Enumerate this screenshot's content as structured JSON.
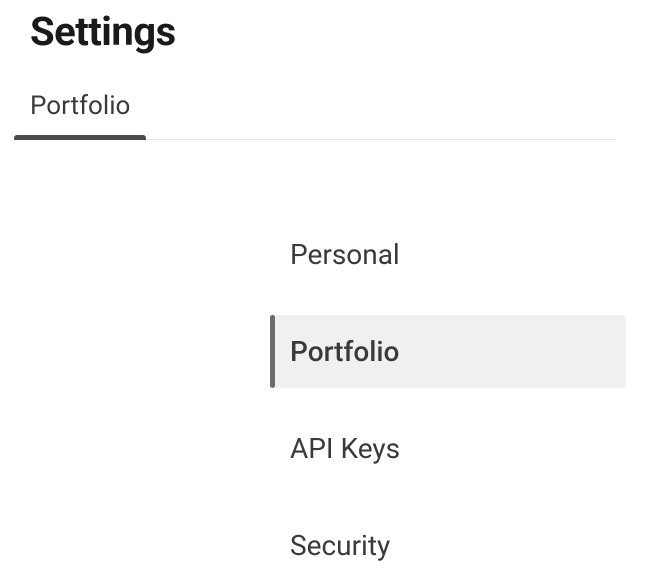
{
  "header": {
    "title": "Settings"
  },
  "tabs": [
    {
      "label": "Portfolio",
      "active": true
    }
  ],
  "menu": {
    "items": [
      {
        "label": "Personal",
        "selected": false
      },
      {
        "label": "Portfolio",
        "selected": true
      },
      {
        "label": "API Keys",
        "selected": false
      },
      {
        "label": "Security",
        "selected": false
      }
    ]
  },
  "colors": {
    "text_primary": "#1a1a1a",
    "text_secondary": "#3a3a3a",
    "tab_indicator": "#4a4a4a",
    "menu_selected_bg": "#f0f0f0",
    "menu_selected_bar": "#6b6b6b",
    "divider": "#e5e5e5",
    "background": "#ffffff"
  },
  "typography": {
    "title_fontsize": 40,
    "title_weight": 700,
    "tab_fontsize": 26,
    "menu_fontsize": 28
  }
}
